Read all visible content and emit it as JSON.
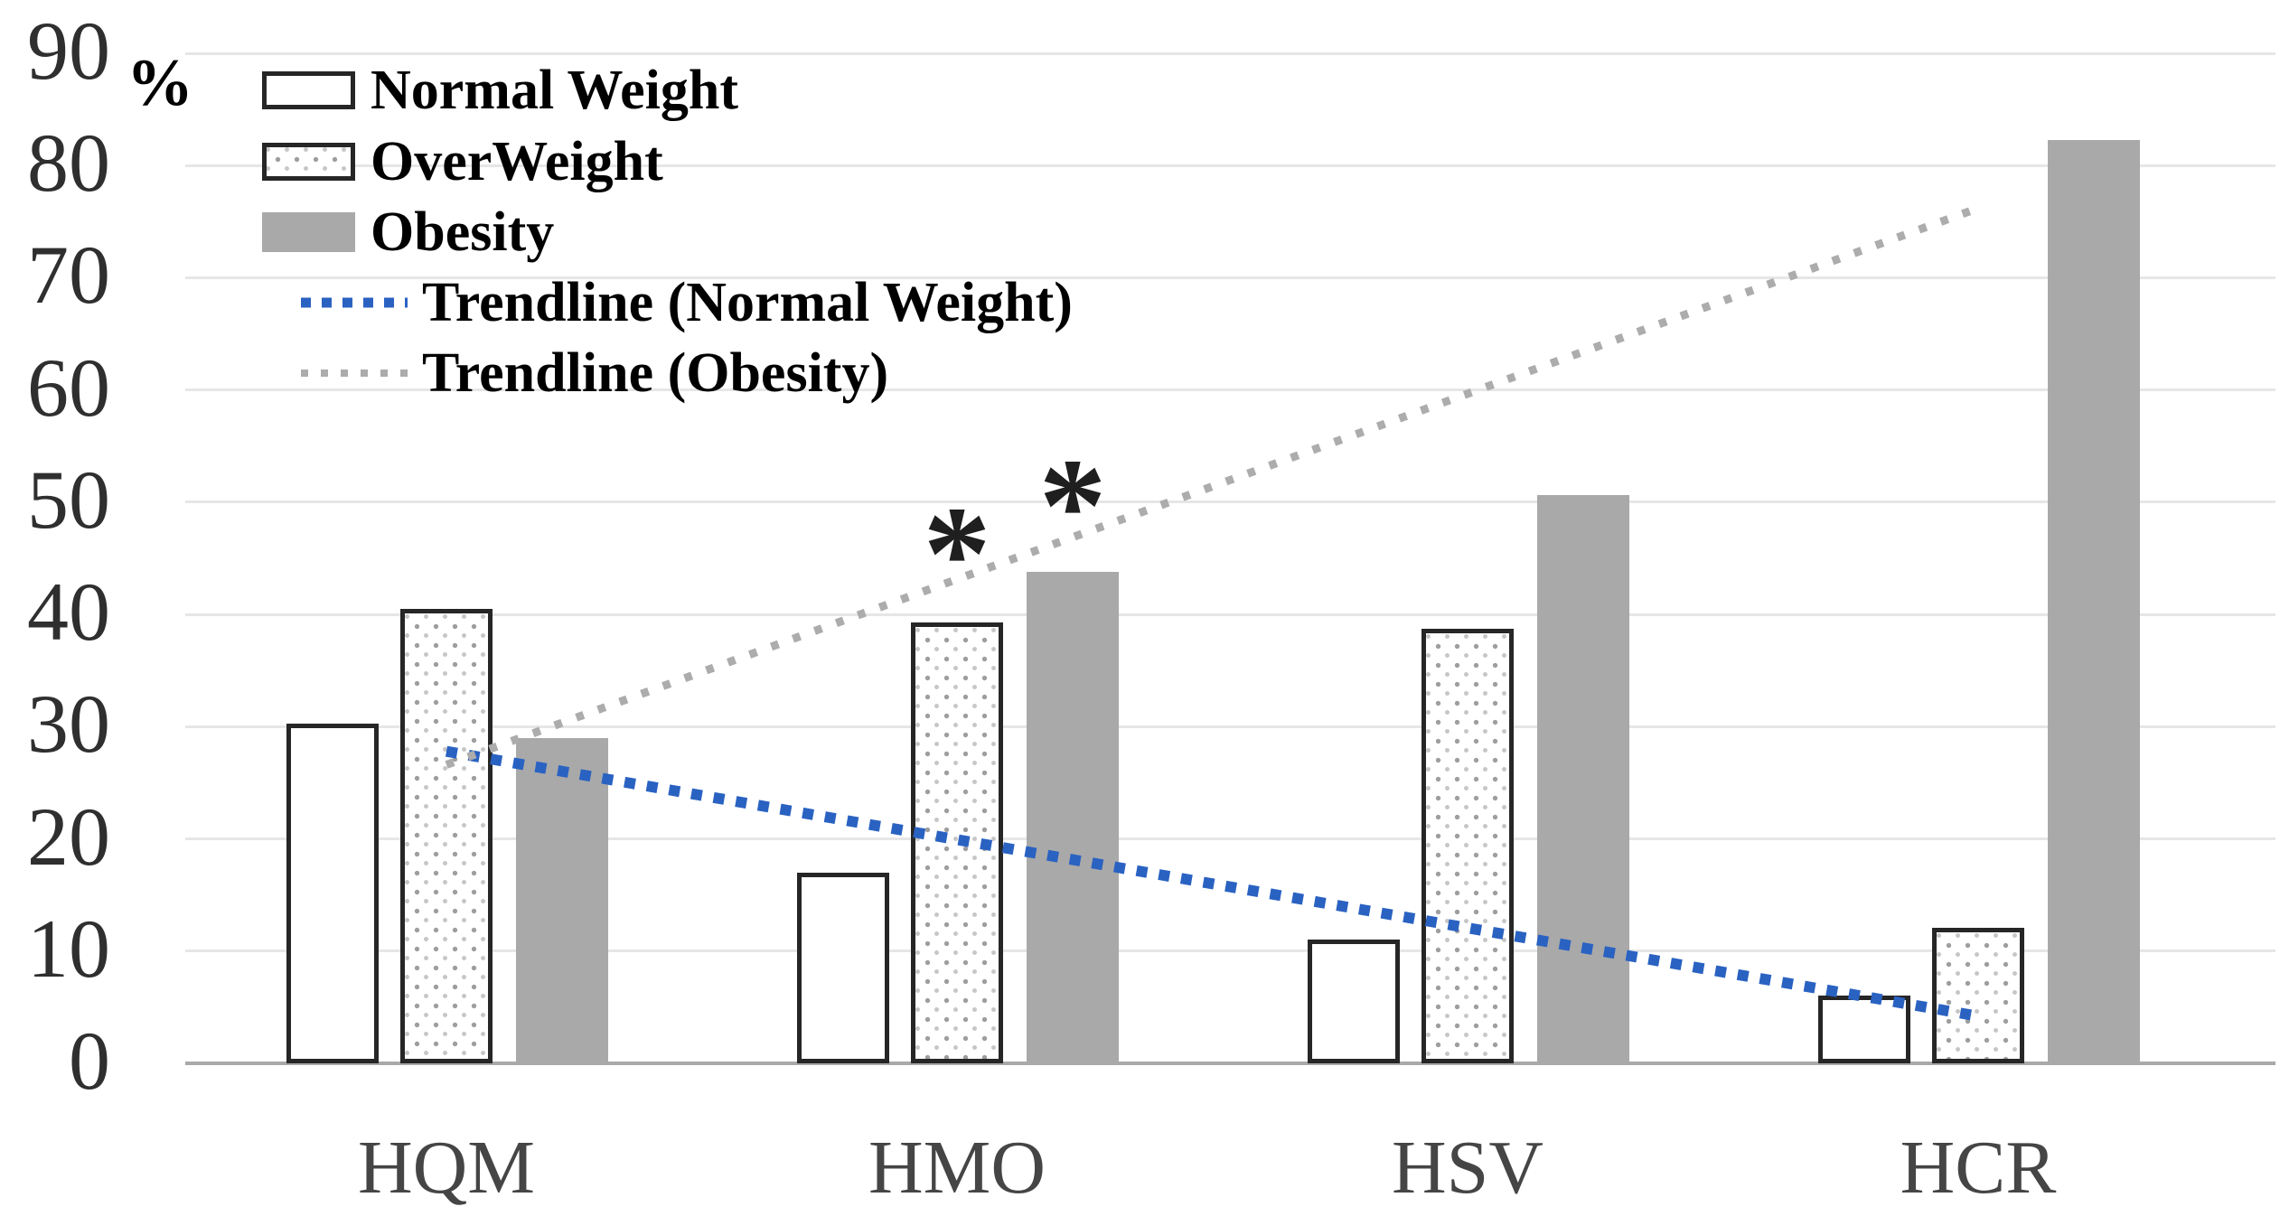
{
  "chart_data": {
    "type": "bar",
    "title": "",
    "categories": [
      "HQM",
      "HMO",
      "HSV",
      "HCR"
    ],
    "series": [
      {
        "name": "Normal Weight",
        "fill": "white-outlined",
        "values": [
          30.3,
          17.0,
          11.0,
          6.0
        ]
      },
      {
        "name": "OverWeight",
        "fill": "dot-pattern",
        "values": [
          40.5,
          39.3,
          38.7,
          12.1
        ]
      },
      {
        "name": "Obesity",
        "fill": "solid-gray",
        "values": [
          29.0,
          43.8,
          50.6,
          82.3
        ]
      }
    ],
    "trendlines": [
      {
        "name": "Trendline (Normal Weight)",
        "color": "#2A62C2",
        "start_value": 27.8,
        "end_value": 4.2,
        "width": 12,
        "dash": [
          12,
          13
        ]
      },
      {
        "name": "Trendline (Obesity)",
        "color": "#ACACAC",
        "start_value": 26.6,
        "end_value": 76.2,
        "width": 9,
        "dash": [
          8.5,
          17
        ]
      }
    ],
    "annotations": [
      {
        "symbol": "*",
        "category": "HMO",
        "series": "OverWeight",
        "y_value": 47.0
      },
      {
        "symbol": "*",
        "category": "HMO",
        "series": "Obesity",
        "y_value": 51.3
      }
    ],
    "y_axis": {
      "unit_label": "%",
      "min": 0,
      "max": 90,
      "tick_step": 10,
      "tick_labels": [
        "0",
        "10",
        "20",
        "30",
        "40",
        "50",
        "60",
        "70",
        "80",
        "90"
      ]
    },
    "x_axis": {
      "labels": [
        "HQM",
        "HMO",
        "HSV",
        "HCR"
      ]
    },
    "grid": true,
    "legend_position": "top-left"
  },
  "legend": {
    "items": [
      {
        "label": "Normal Weight",
        "marker": "box-white"
      },
      {
        "label": "OverWeight",
        "marker": "box-dots"
      },
      {
        "label": "Obesity",
        "marker": "box-gray"
      },
      {
        "label": "Trendline (Normal Weight)",
        "marker": "dotted-line-blue"
      },
      {
        "label": "Trendline (Obesity)",
        "marker": "dotted-line-gray"
      }
    ]
  },
  "colors": {
    "obesity_bar": "#A9A9A9",
    "bar_outline": "#262626",
    "overweight_dot": "#9E9E9E",
    "gridline": "#E6E6E6",
    "axis_line": "#A9A9A9",
    "trend_blue": "#2A62C2",
    "trend_gray": "#ACACAC",
    "y_tick_text": "#2F2F2F",
    "x_label_text": "#454545",
    "legend_text": "#000000"
  }
}
